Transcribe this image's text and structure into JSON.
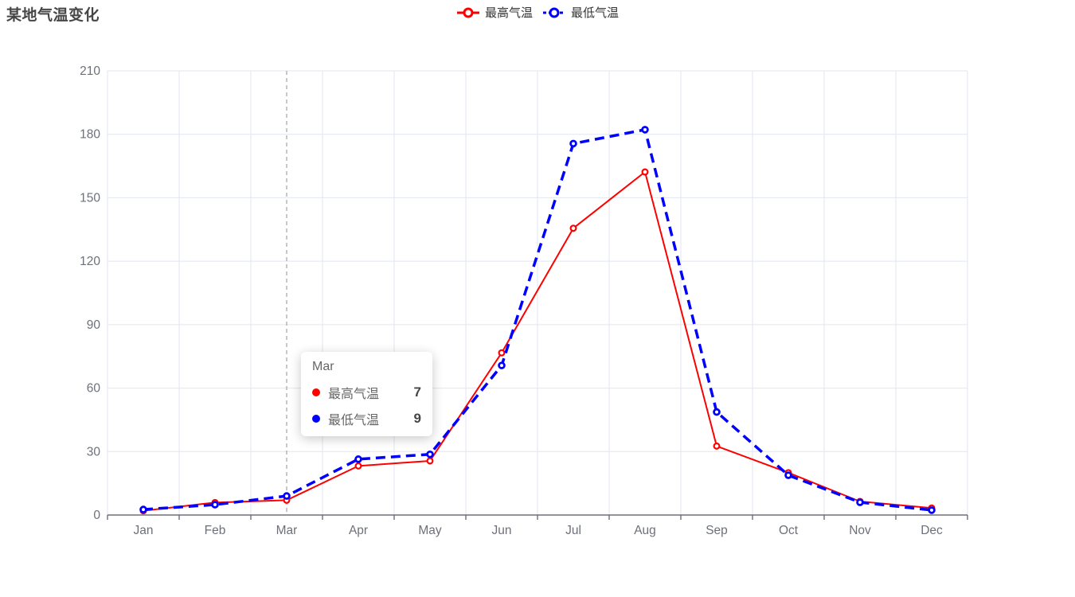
{
  "chart_data": {
    "type": "line",
    "title": "某地气温变化",
    "categories": [
      "Jan",
      "Feb",
      "Mar",
      "Apr",
      "May",
      "Jun",
      "Jul",
      "Aug",
      "Sep",
      "Oct",
      "Nov",
      "Dec"
    ],
    "series": [
      {
        "name": "最高气温",
        "color": "#ff0000",
        "line_style": "solid",
        "line_width": 2,
        "marker": "hollow-circle",
        "values": [
          2.0,
          5.9,
          7.0,
          23.2,
          25.6,
          76.7,
          135.6,
          162.2,
          32.6,
          20.0,
          6.4,
          3.3
        ]
      },
      {
        "name": "最低气温",
        "color": "#0000ff",
        "line_style": "dashed",
        "line_width": 3.5,
        "marker": "hollow-circle",
        "values": [
          2.6,
          4.9,
          9.0,
          26.4,
          28.7,
          70.7,
          175.6,
          182.2,
          48.7,
          18.8,
          6.0,
          2.3
        ]
      }
    ],
    "ylim": [
      0,
      210
    ],
    "ytick_interval": 30,
    "ytick_labels": [
      "0",
      "30",
      "60",
      "90",
      "120",
      "150",
      "180",
      "210"
    ],
    "grid": true,
    "legend_position": "top-center",
    "axis_pointer_category": "Mar",
    "colors": {
      "grid_line": "#e0e6f1",
      "axis_line": "#6e7079",
      "axis_label": "#6e7079",
      "pointer_line": "#aaaaaa",
      "title_text": "#464646",
      "legend_text": "#333333"
    }
  },
  "tooltip": {
    "title": "Mar",
    "rows": [
      {
        "label": "最高气温",
        "value": "7",
        "color": "#ff0000"
      },
      {
        "label": "最低气温",
        "value": "9",
        "color": "#0000ff"
      }
    ]
  }
}
